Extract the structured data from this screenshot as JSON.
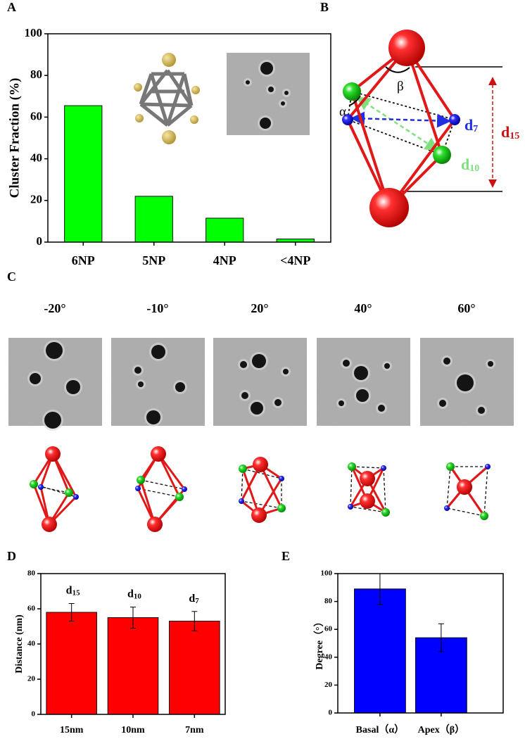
{
  "chart_data": [
    {
      "type": "bar",
      "panel_label": "A",
      "y_label": "Cluster Fraction (%)",
      "categories": [
        "6NP",
        "5NP",
        "4NP",
        "<4NP"
      ],
      "values": [
        65.5,
        22,
        11.5,
        1.5
      ],
      "color": "#00ff00",
      "ylim": [
        0,
        100
      ],
      "yticks": [
        0,
        20,
        40,
        60,
        80,
        100
      ]
    },
    {
      "type": "bar",
      "panel_label": "D",
      "y_label": "Distance (nm)",
      "categories": [
        "15nm",
        "10nm",
        "7nm"
      ],
      "values": [
        58,
        55,
        53
      ],
      "errors": [
        5,
        6,
        5.5
      ],
      "annotations": [
        {
          "base": "d",
          "sub": "15"
        },
        {
          "base": "d",
          "sub": "10"
        },
        {
          "base": "d",
          "sub": "7"
        }
      ],
      "color": "#ff0000",
      "ylim": [
        0,
        80
      ],
      "yticks": [
        0,
        20,
        40,
        60,
        80
      ]
    },
    {
      "type": "bar",
      "panel_label": "E",
      "y_label": "Degree（°）",
      "categories": [
        "Basal（α）",
        "Apex（β）"
      ],
      "values": [
        89,
        54
      ],
      "errors": [
        11,
        10
      ],
      "color": "#0000ff",
      "ylim": [
        0,
        100
      ],
      "yticks": [
        0,
        20,
        40,
        60,
        80,
        100
      ]
    }
  ],
  "panel_b": {
    "label": "B",
    "alpha": "α",
    "beta": "β",
    "d7": {
      "base": "d",
      "sub": "7"
    },
    "d10": {
      "base": "d",
      "sub": "10"
    },
    "d15": {
      "base": "d",
      "sub": "15"
    }
  },
  "panel_c": {
    "label": "C",
    "angles": [
      "-20°",
      "-10°",
      "20°",
      "40°",
      "60°"
    ]
  }
}
